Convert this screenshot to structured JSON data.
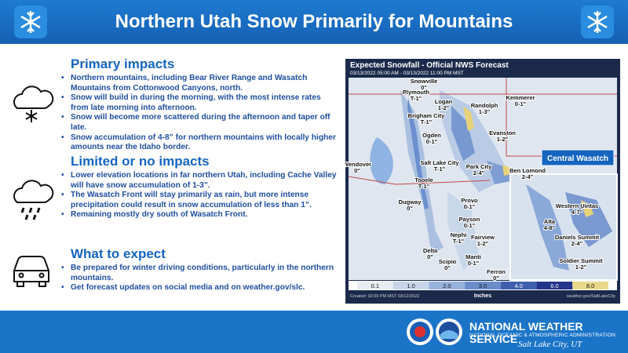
{
  "header": {
    "title": "Northern Utah Snow Primarily for Mountains"
  },
  "sections": [
    {
      "heading": "Primary impacts",
      "bullets": [
        "Northern mountains, including Bear River Range and Wasatch Mountains from Cottonwood Canyons, north.",
        "Snow will build in during the morning, with the most intense rates from late morning into afternoon.",
        "Snow will become more scattered during the afternoon and taper off late.",
        "Snow accumulation of 4-8” for northern mountains with locally higher amounts near the Idaho border."
      ]
    },
    {
      "heading": "Limited or no impacts",
      "bullets": [
        "Lower elevation locations in far northern Utah, including Cache Valley will have snow accumulation of 1-3”.",
        "The Wasatch Front will stay primarily as rain, but more intense precipitation could result in snow accumulation of less than 1”.",
        "Remaining mostly dry south of Wasatch Front."
      ]
    },
    {
      "heading": "What to expect",
      "bullets": [
        "Be prepared for winter driving conditions, particularly in the northern mountains.",
        "Get forecast updates on social media and on weather.gov/slc."
      ]
    }
  ],
  "map": {
    "title": "Expected Snowfall - Official NWS Forecast",
    "subtitle": "03/13/2022 05:00 AM - 03/13/2022 11:00 PM MST",
    "inset_label": "Central Wasatch",
    "labels": [
      {
        "name": "Snowville",
        "amount": "0\""
      },
      {
        "name": "Plymouth",
        "amount": "T-1\""
      },
      {
        "name": "Logan",
        "amount": "1-2\""
      },
      {
        "name": "Randolph",
        "amount": "1-3\""
      },
      {
        "name": "Kemmerer",
        "amount": "0-1\""
      },
      {
        "name": "Brigham City",
        "amount": "T-1\""
      },
      {
        "name": "Ogden",
        "amount": "0-1\""
      },
      {
        "name": "Evanston",
        "amount": "1-2\""
      },
      {
        "name": "Wendover",
        "amount": "0\""
      },
      {
        "name": "Salt Lake City",
        "amount": "T-1\""
      },
      {
        "name": "Park City",
        "amount": "2-4\""
      },
      {
        "name": "Tooele",
        "amount": "T-1\""
      },
      {
        "name": "Provo",
        "amount": "0-1\""
      },
      {
        "name": "Dugway",
        "amount": "0\""
      },
      {
        "name": "Payson",
        "amount": "0-1\""
      },
      {
        "name": "Nephi",
        "amount": "T-1\""
      },
      {
        "name": "Fairview",
        "amount": "1-2\""
      },
      {
        "name": "Delta",
        "amount": "0\""
      },
      {
        "name": "Scipio",
        "amount": "0\""
      },
      {
        "name": "Manti",
        "amount": "0-1\""
      },
      {
        "name": "Ferron",
        "amount": "0\""
      },
      {
        "name": "Ben Lomond",
        "amount": "2-4\""
      },
      {
        "name": "Alta",
        "amount": "4-8\""
      },
      {
        "name": "Western Uintas",
        "amount": "4-7\""
      },
      {
        "name": "Daniels Summit",
        "amount": "2-4\""
      },
      {
        "name": "Soldier Summit",
        "amount": "1-2\""
      }
    ],
    "legend": {
      "labels": [
        "0.1",
        "1.0",
        "2.0",
        "3.0",
        "4.0",
        "6.0",
        "8.0"
      ],
      "unit": "Inches"
    },
    "created": "Created: 02:00 PM MST 03/12/2022",
    "source": "weather.gov/SaltLakeCity"
  },
  "footer": {
    "agency": "NATIONAL WEATHER SERVICE",
    "parent": "NATIONAL OCEANIC & ATMOSPHERIC ADMINISTRATION",
    "office": "Salt Lake City, UT"
  }
}
